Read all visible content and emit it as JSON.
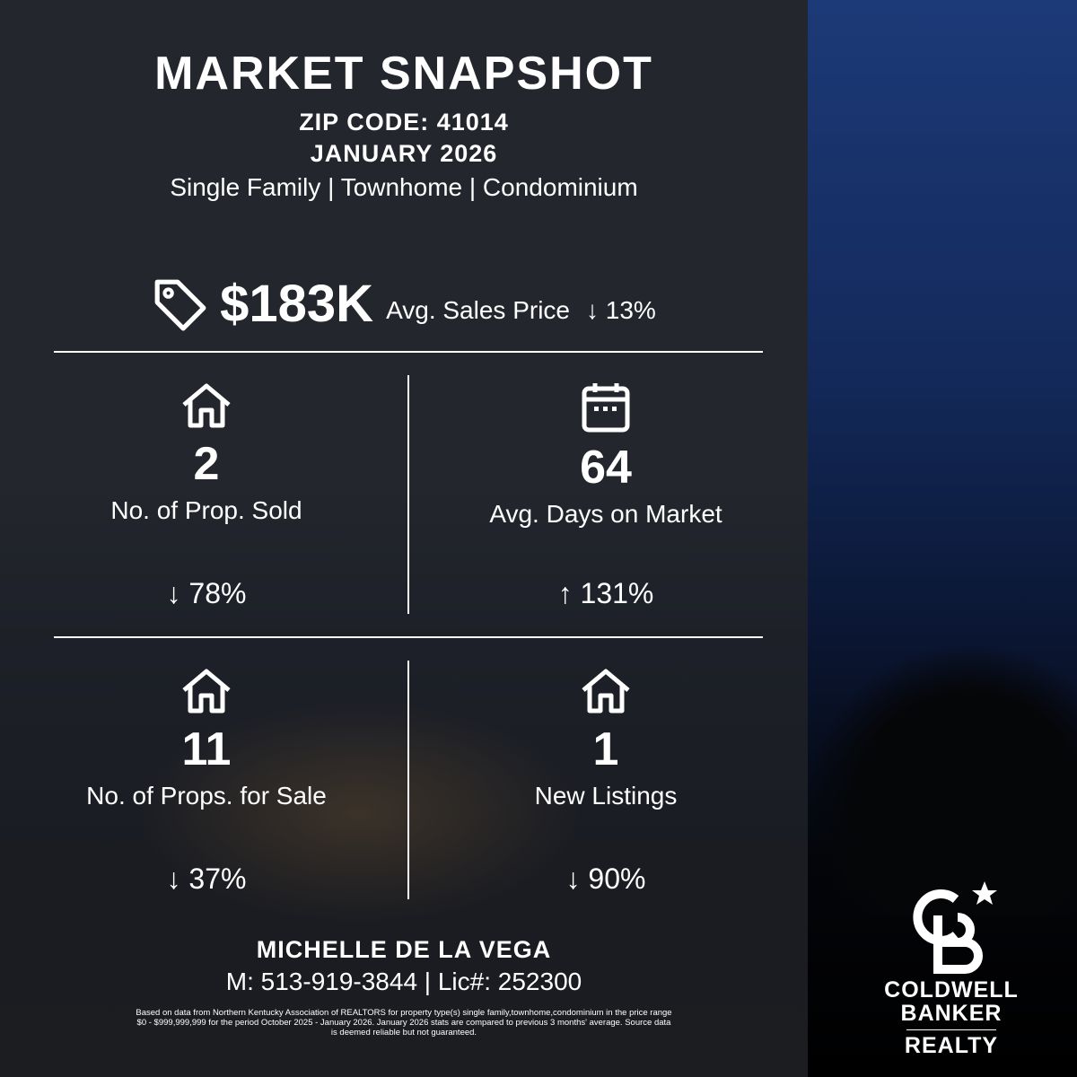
{
  "header": {
    "title": "MARKET SNAPSHOT",
    "zip": "ZIP CODE: 41014",
    "month": "JANUARY 2026",
    "property_types": "Single Family | Townhome | Condominium"
  },
  "price": {
    "icon": "price-tag-icon",
    "value": "$183K",
    "label": "Avg. Sales Price",
    "change": "13%",
    "direction": "down"
  },
  "stats": [
    {
      "icon": "house-icon",
      "value": "2",
      "label": "No. of Prop. Sold",
      "change": "78%",
      "direction": "down"
    },
    {
      "icon": "calendar-icon",
      "value": "64",
      "label": "Avg. Days on Market",
      "change": "131%",
      "direction": "up"
    },
    {
      "icon": "house-icon",
      "value": "11",
      "label": "No. of Props. for Sale",
      "change": "37%",
      "direction": "down"
    },
    {
      "icon": "house-icon",
      "value": "1",
      "label": "New Listings",
      "change": "90%",
      "direction": "down"
    }
  ],
  "agent": {
    "name": "MICHELLE DE LA VEGA",
    "contact": "M: 513-919-3844 | Lic#: 252300"
  },
  "disclaimer": "Based on data from Northern Kentucky Association of REALTORS for property type(s) single family,townhome,condominium in the price range $0 - $999,999,999 for the period October 2025 - January 2026. January 2026 stats are compared to previous 3 months' average. Source data is deemed reliable but not guaranteed.",
  "logo": {
    "monogram": "CB",
    "line1": "COLDWELL",
    "line2": "BANKER",
    "line3": "REALTY"
  }
}
